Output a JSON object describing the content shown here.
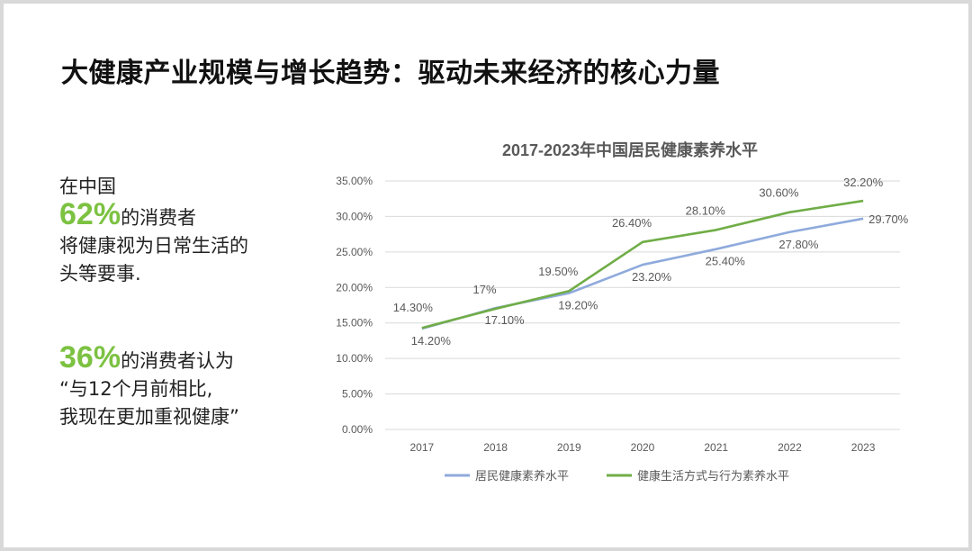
{
  "slide": {
    "title": "大健康产业规模与增长趋势：驱动未来经济的核心力量"
  },
  "left_panel": {
    "block1": {
      "line1": "在中国",
      "highlight": "62%",
      "suffix": "的消费者",
      "line3": "将健康视为日常生活的",
      "line4": "头等要事."
    },
    "block2": {
      "highlight": "36%",
      "suffix": "的消费者认为",
      "line2": "“与12个月前相比,",
      "line3": "我现在更加重视健康”"
    }
  },
  "colors": {
    "accent_green": "#7cc242",
    "series_blue": "#8faadc",
    "series_green": "#70ad47"
  },
  "chart_data": {
    "type": "line",
    "title": "2017-2023年中国居民健康素养水平",
    "categories": [
      "2017",
      "2018",
      "2019",
      "2020",
      "2021",
      "2022",
      "2023"
    ],
    "ylim": [
      0,
      35
    ],
    "yticks": [
      "0.00%",
      "5.00%",
      "10.00%",
      "15.00%",
      "20.00%",
      "25.00%",
      "30.00%",
      "35.00%"
    ],
    "grid": true,
    "legend_position": "bottom",
    "series": [
      {
        "name": "居民健康素养水平",
        "color": "#8faadc",
        "values": [
          14.2,
          17.1,
          19.2,
          23.2,
          25.4,
          27.8,
          29.7
        ],
        "labels": [
          "14.20%",
          "17.10%",
          "19.20%",
          "23.20%",
          "25.40%",
          "27.80%",
          "29.70%"
        ]
      },
      {
        "name": "健康生活方式与行为素养水平",
        "color": "#70ad47",
        "values": [
          14.3,
          17,
          19.5,
          26.4,
          28.1,
          30.6,
          32.2
        ],
        "labels": [
          "14.30%",
          "17%",
          "19.50%",
          "26.40%",
          "28.10%",
          "30.60%",
          "32.20%"
        ]
      }
    ]
  }
}
